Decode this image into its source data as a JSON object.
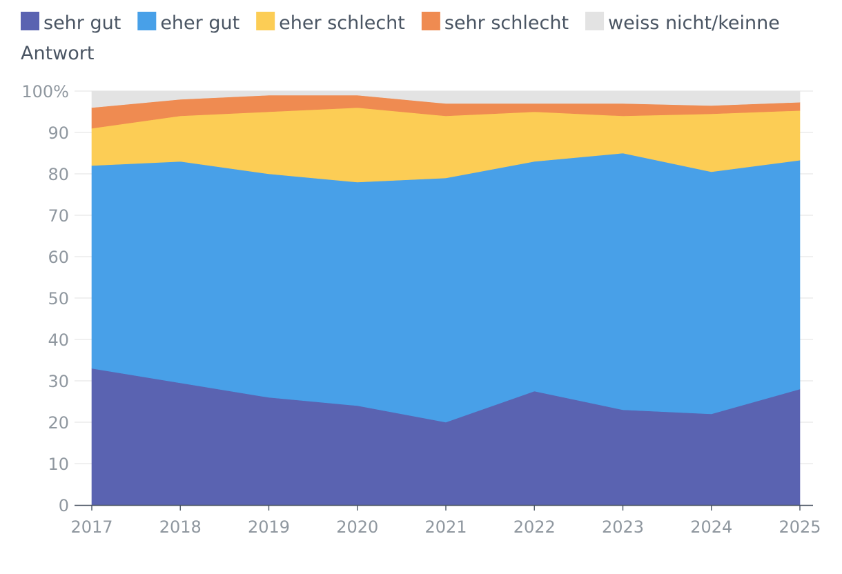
{
  "chart_data": {
    "type": "area",
    "stacked": true,
    "x": [
      "2017",
      "2018",
      "2019",
      "2020",
      "2021",
      "2022",
      "2023",
      "2024",
      "2025"
    ],
    "series": [
      {
        "name": "sehr gut",
        "color": "#5a63b1",
        "values": [
          33,
          29.5,
          26,
          24,
          20,
          27.5,
          23,
          22,
          28
        ]
      },
      {
        "name": "eher gut",
        "color": "#48a0e8",
        "values": [
          49,
          53.5,
          54,
          54,
          59,
          55.5,
          62,
          58.5,
          55.3
        ]
      },
      {
        "name": "eher schlecht",
        "color": "#fccd55",
        "values": [
          9,
          11,
          15,
          18,
          15,
          12,
          9,
          14,
          12
        ]
      },
      {
        "name": "sehr schlecht",
        "color": "#ef8b51",
        "values": [
          5,
          4,
          4,
          3,
          3,
          2,
          3,
          2,
          2
        ]
      },
      {
        "name": "weiss nicht/keinne Antwort",
        "color": "#e3e3e3",
        "values": [
          4,
          2,
          1,
          1,
          3,
          3,
          3,
          3.5,
          2.7
        ]
      }
    ],
    "legend_lines": [
      [
        "sehr gut",
        "eher gut",
        "eher schlecht",
        "sehr schlecht",
        "weiss nicht/keinne"
      ],
      [
        "Antwort"
      ]
    ],
    "y_ticks": [
      "0",
      "10",
      "20",
      "30",
      "40",
      "50",
      "60",
      "70",
      "80",
      "90",
      "100%"
    ],
    "ylim": [
      0,
      100
    ],
    "grid": true,
    "legend_position": "top-left",
    "title": "",
    "xlabel": "",
    "ylabel": ""
  }
}
